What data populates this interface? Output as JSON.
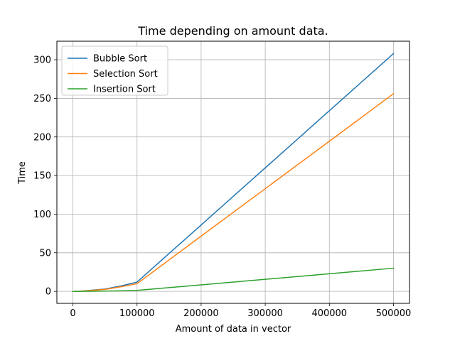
{
  "chart_data": {
    "type": "line",
    "title": "Time depending on amount data.",
    "xlabel": "Amount of data in vector",
    "ylabel": "Time",
    "xlim": [
      -25000,
      525000
    ],
    "ylim": [
      -15.5,
      324
    ],
    "xticks": [
      0,
      100000,
      200000,
      300000,
      400000,
      500000
    ],
    "xtick_labels": [
      "0",
      "100000",
      "200000",
      "300000",
      "400000",
      "500000"
    ],
    "yticks": [
      0,
      50,
      100,
      150,
      200,
      250,
      300
    ],
    "ytick_labels": [
      "0",
      "50",
      "100",
      "150",
      "200",
      "250",
      "300"
    ],
    "grid": true,
    "legend_position": "top-left",
    "series": [
      {
        "name": "Bubble Sort",
        "color": "#1f77b4",
        "x": [
          0,
          10000,
          50000,
          75000,
          100000,
          500000
        ],
        "y": [
          0,
          0.1,
          3,
          7,
          12,
          308
        ]
      },
      {
        "name": "Selection Sort",
        "color": "#ff7f0e",
        "x": [
          0,
          10000,
          50000,
          75000,
          100000,
          500000
        ],
        "y": [
          0,
          0.1,
          2.5,
          6,
          10,
          256
        ]
      },
      {
        "name": "Insertion Sort",
        "color": "#2ca02c",
        "x": [
          0,
          10000,
          50000,
          75000,
          100000,
          500000
        ],
        "y": [
          0,
          0.02,
          0.3,
          0.7,
          1.2,
          30
        ]
      }
    ]
  }
}
